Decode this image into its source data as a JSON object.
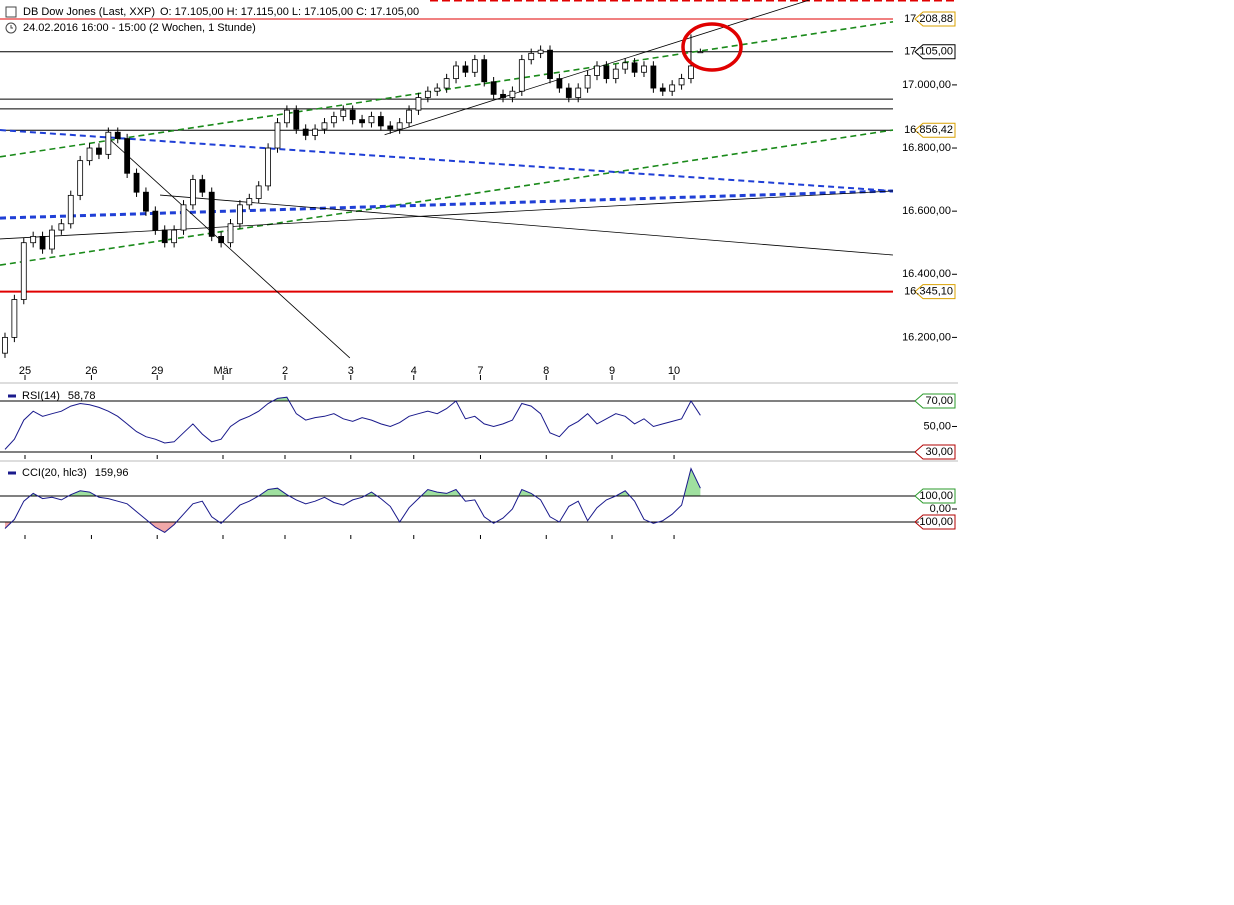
{
  "chart_data": [
    {
      "type": "candlestick",
      "title": "DB Dow Jones (Last, XXP)",
      "quote": "O: 17.105,00  H: 17.115,00  L: 17.105,00  C: 17.105,00",
      "subtitle": "24.02.2016 16:00 - 15:00 (2 Wochen, 1 Stunde)",
      "xlim": [
        -0.53,
        94.5
      ],
      "xticks": [
        {
          "value": 2.13,
          "label": "25"
        },
        {
          "value": 9.2,
          "label": "26"
        },
        {
          "value": 16.2,
          "label": "29"
        },
        {
          "value": 23.2,
          "label": "Mär"
        },
        {
          "value": 29.8,
          "label": "2"
        },
        {
          "value": 36.8,
          "label": "3"
        },
        {
          "value": 43.5,
          "label": "4"
        },
        {
          "value": 50.6,
          "label": "7"
        },
        {
          "value": 57.6,
          "label": "8"
        },
        {
          "value": 64.6,
          "label": "9"
        },
        {
          "value": 71.2,
          "label": "10"
        }
      ],
      "ylim": [
        16065,
        17269
      ],
      "yticks": [
        {
          "value": 17000,
          "label": "17.000,00"
        },
        {
          "value": 16800,
          "label": "16.800,00"
        },
        {
          "value": 16600,
          "label": "16.600,00"
        },
        {
          "value": 16400,
          "label": "16.400,00"
        },
        {
          "value": 16200,
          "label": "16.200,00"
        }
      ],
      "up_color": "#ffffff",
      "down_color": "#000000",
      "open": [
        16150,
        16200,
        16320,
        16500,
        16520,
        16480,
        16540,
        16560,
        16650,
        16760,
        16800,
        16780,
        16850,
        16830,
        16720,
        16660,
        16600,
        16540,
        16500,
        16540,
        16620,
        16700,
        16660,
        16520,
        16500,
        16560,
        16620,
        16640,
        16680,
        16800,
        16880,
        16920,
        16860,
        16840,
        16860,
        16880,
        16900,
        16920,
        16890,
        16880,
        16900,
        16870,
        16860,
        16880,
        16920,
        16960,
        16980,
        16990,
        17020,
        17060,
        17040,
        17080,
        17010,
        16970,
        16960,
        16980,
        17080,
        17100,
        17110,
        17020,
        16990,
        16960,
        16990,
        17030,
        17060,
        17020,
        17050,
        17070,
        17040,
        17060,
        16990,
        16980,
        17000,
        17020,
        17105
      ],
      "high": [
        16215,
        16335,
        16515,
        16535,
        16535,
        16555,
        16575,
        16665,
        16775,
        16815,
        16815,
        16865,
        16865,
        16845,
        16735,
        16675,
        16615,
        16555,
        16555,
        16635,
        16715,
        16715,
        16675,
        16535,
        16575,
        16635,
        16655,
        16695,
        16815,
        16895,
        16935,
        16935,
        16875,
        16875,
        16895,
        16915,
        16935,
        16935,
        16905,
        16915,
        16915,
        16885,
        16895,
        16935,
        16975,
        16995,
        17005,
        17035,
        17075,
        17075,
        17095,
        17095,
        17025,
        16985,
        16995,
        17095,
        17115,
        17125,
        17125,
        17035,
        17005,
        17005,
        17045,
        17075,
        17075,
        17065,
        17085,
        17085,
        17075,
        17075,
        17005,
        17015,
        17035,
        17160,
        17115
      ],
      "low": [
        16135,
        16185,
        16305,
        16485,
        16465,
        16465,
        16525,
        16545,
        16635,
        16745,
        16765,
        16765,
        16815,
        16705,
        16645,
        16585,
        16525,
        16485,
        16485,
        16525,
        16605,
        16645,
        16505,
        16485,
        16485,
        16545,
        16605,
        16625,
        16665,
        16785,
        16865,
        16845,
        16825,
        16825,
        16845,
        16865,
        16885,
        16875,
        16865,
        16865,
        16855,
        16845,
        16845,
        16865,
        16905,
        16945,
        16965,
        16975,
        17005,
        17025,
        17025,
        16995,
        16955,
        16945,
        16945,
        16965,
        17065,
        17085,
        17005,
        16975,
        16945,
        16945,
        16975,
        17015,
        17005,
        17005,
        17035,
        17025,
        17025,
        16975,
        16965,
        16965,
        16985,
        17005,
        17105
      ],
      "close": [
        16200,
        16320,
        16500,
        16520,
        16480,
        16540,
        16560,
        16650,
        16760,
        16800,
        16780,
        16850,
        16830,
        16720,
        16660,
        16600,
        16540,
        16500,
        16540,
        16620,
        16700,
        16660,
        16520,
        16500,
        16560,
        16620,
        16640,
        16680,
        16800,
        16880,
        16920,
        16860,
        16840,
        16860,
        16880,
        16900,
        16920,
        16890,
        16880,
        16900,
        16870,
        16860,
        16880,
        16920,
        16960,
        16980,
        16990,
        17020,
        17060,
        17040,
        17080,
        17010,
        16970,
        16960,
        16980,
        17080,
        17100,
        17110,
        17020,
        16990,
        16960,
        16990,
        17030,
        17060,
        17020,
        17050,
        17070,
        17040,
        17060,
        16990,
        16980,
        17000,
        17020,
        17060,
        17105
      ],
      "levels": [
        {
          "value": 17208.88,
          "label": "17.208,88",
          "color": "#e00000",
          "tag_color": "#d9a000"
        },
        {
          "value": 17105,
          "label": "17.105,00",
          "color": "#000000",
          "tag_color": "#000000"
        },
        {
          "value": 16955,
          "color": "#000000"
        },
        {
          "value": 16924,
          "color": "#000000"
        },
        {
          "value": 16856.42,
          "label": "16.856,42",
          "color": "#000000",
          "tag_color": "#d9a000"
        },
        {
          "value": 16345.1,
          "label": "16.345,10",
          "color": "#e00000",
          "tag_color": "#d9a000"
        }
      ],
      "trendlines": [
        {
          "x": [
            -0.53,
            94.5
          ],
          "y": [
            16772,
            17200
          ],
          "color": "#1a8a1a",
          "dash": true,
          "width": 1.6
        },
        {
          "x": [
            -0.53,
            94.5
          ],
          "y": [
            16429,
            16857
          ],
          "color": "#1a8a1a",
          "dash": true,
          "width": 1.6
        },
        {
          "x": [
            -0.53,
            94.5
          ],
          "y": [
            16857,
            16664
          ],
          "color": "#1f3fd6",
          "dash": true,
          "width": 2
        },
        {
          "x": [
            -0.53,
            94.5
          ],
          "y": [
            16578,
            16664
          ],
          "color": "#1f3fd6",
          "dash": true,
          "width": 3
        },
        {
          "x": [
            -0.53,
            94.5
          ],
          "y": [
            16512,
            16664
          ],
          "color": "#000000",
          "dash": false,
          "width": 0.8
        },
        {
          "x": [
            16.5,
            94.5
          ],
          "y": [
            16651,
            16461
          ],
          "color": "#000000",
          "dash": false,
          "width": 0.8
        },
        {
          "x": [
            11.2,
            36.7
          ],
          "y": [
            16826,
            16135
          ],
          "color": "#000000",
          "dash": false,
          "width": 0.8
        },
        {
          "x": [
            40.4,
            85.6
          ],
          "y": [
            16842,
            17269
          ],
          "color": "#000000",
          "dash": false,
          "width": 0.8
        }
      ]
    },
    {
      "type": "line",
      "ylim": [
        27.6,
        80.2
      ],
      "yticks": [
        {
          "value": 50,
          "label": "50,00"
        }
      ],
      "levels": [
        {
          "value": 70,
          "label": "70,00",
          "color": "#000000",
          "tag_color": "#2a9a2a"
        },
        {
          "value": 30,
          "label": "30,00",
          "color": "#000000",
          "tag_color": "#b00000"
        }
      ],
      "fill_above": "#9fe09f",
      "fill_below": "#f0a8a8",
      "series": [
        {
          "name": "RSI(14)",
          "color": "#1a1a8c",
          "current_label": "58,78",
          "values": [
            32,
            40,
            55,
            62,
            58,
            60,
            62,
            66,
            68,
            67,
            65,
            62,
            58,
            52,
            46,
            42,
            40,
            37,
            38,
            45,
            52,
            44,
            38,
            40,
            50,
            55,
            58,
            62,
            68,
            72,
            73,
            60,
            55,
            57,
            58,
            60,
            56,
            54,
            57,
            55,
            52,
            50,
            53,
            58,
            60,
            62,
            60,
            64,
            70,
            56,
            58,
            52,
            50,
            52,
            55,
            68,
            66,
            60,
            45,
            42,
            50,
            54,
            60,
            52,
            56,
            60,
            58,
            52,
            56,
            50,
            52,
            54,
            56,
            70,
            58.78
          ]
        }
      ]
    },
    {
      "type": "line",
      "ylim": [
        -200,
        338
      ],
      "yticks": [
        {
          "value": 0,
          "label": "0,00"
        }
      ],
      "levels": [
        {
          "value": 100,
          "label": "100,00",
          "color": "#000000",
          "tag_color": "#2a9a2a"
        },
        {
          "value": -100,
          "label": "-100,00",
          "color": "#000000",
          "tag_color": "#b00000"
        }
      ],
      "fill_above": "#9fe09f",
      "fill_below": "#f0a8a8",
      "series": [
        {
          "name": "CCI(20, hlc3)",
          "color": "#1a1a8c",
          "current_label": "159,96",
          "values": [
            -150,
            -80,
            60,
            120,
            80,
            90,
            70,
            110,
            140,
            130,
            90,
            80,
            60,
            40,
            -20,
            -80,
            -140,
            -180,
            -120,
            -40,
            40,
            60,
            -60,
            -110,
            -40,
            30,
            60,
            100,
            150,
            160,
            110,
            70,
            40,
            60,
            90,
            50,
            30,
            70,
            90,
            130,
            80,
            20,
            -100,
            10,
            80,
            150,
            130,
            120,
            150,
            60,
            70,
            -60,
            -110,
            -70,
            0,
            150,
            120,
            70,
            -60,
            -100,
            20,
            60,
            -90,
            10,
            70,
            100,
            140,
            60,
            -80,
            -110,
            -90,
            -40,
            30,
            310,
            159.96
          ]
        }
      ]
    }
  ]
}
